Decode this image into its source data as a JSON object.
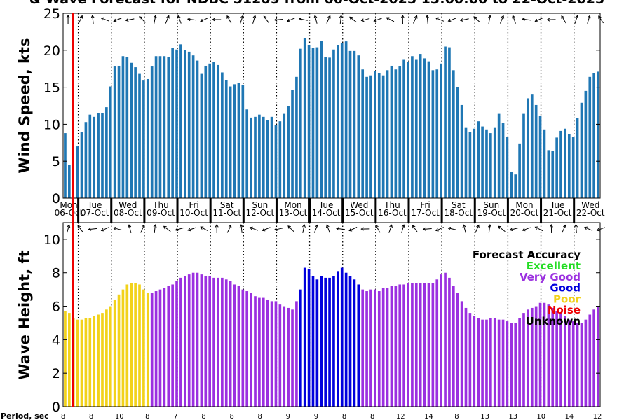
{
  "title": "& Wave Forecast for NDBC 51209 from 06-Oct-2025 13:00:00 to 22-Oct-2025",
  "colors": {
    "wind_bar": "#1f77b4",
    "excellent": "#22dd22",
    "very_good": "#9b30e0",
    "good": "#0000dd",
    "poor": "#f2d21a",
    "noise": "#ee0000",
    "unknown": "#000000",
    "now_line": "#ee0000"
  },
  "days": [
    {
      "dow": "Mon",
      "date": "06-Oct"
    },
    {
      "dow": "Tue",
      "date": "07-Oct"
    },
    {
      "dow": "Wed",
      "date": "08-Oct"
    },
    {
      "dow": "Thu",
      "date": "09-Oct"
    },
    {
      "dow": "Fri",
      "date": "10-Oct"
    },
    {
      "dow": "Sat",
      "date": "11-Oct"
    },
    {
      "dow": "Sun",
      "date": "12-Oct"
    },
    {
      "dow": "Mon",
      "date": "13-Oct"
    },
    {
      "dow": "Tue",
      "date": "14-Oct"
    },
    {
      "dow": "Wed",
      "date": "15-Oct"
    },
    {
      "dow": "Thu",
      "date": "16-Oct"
    },
    {
      "dow": "Fri",
      "date": "17-Oct"
    },
    {
      "dow": "Sat",
      "date": "18-Oct"
    },
    {
      "dow": "Sun",
      "date": "19-Oct"
    },
    {
      "dow": "Mon",
      "date": "20-Oct"
    },
    {
      "dow": "Tue",
      "date": "21-Oct"
    },
    {
      "dow": "Wed",
      "date": "22-Oct"
    }
  ],
  "legend": {
    "title": "Forecast Accuracy",
    "items": [
      {
        "label": "Excellent",
        "color_key": "excellent"
      },
      {
        "label": "Very Good",
        "color_key": "very_good"
      },
      {
        "label": "Good",
        "color_key": "good"
      },
      {
        "label": "Poor",
        "color_key": "poor"
      },
      {
        "label": "Noise",
        "color_key": "noise"
      },
      {
        "label": "Unknown",
        "color_key": "unknown"
      }
    ]
  },
  "period_label": "Period, sec",
  "period_values": [
    "8",
    "8",
    "10",
    "8",
    "7",
    "8",
    "8",
    "8",
    "9",
    "9",
    "8",
    "8",
    "12",
    "14",
    "8",
    "13",
    "13",
    "10",
    "14",
    "12"
  ],
  "chart_data": [
    {
      "type": "bar",
      "ylabel": "Wind Speed, kts",
      "ylim": [
        0,
        25
      ],
      "yticks": [
        0,
        5,
        10,
        15,
        20,
        25
      ],
      "grid": "dotted vertical lines at day boundaries",
      "start_hour": 13,
      "step_hours": 3,
      "values": [
        8.8,
        4.5,
        0,
        7.0,
        8.9,
        10.3,
        11.3,
        11.0,
        11.5,
        11.5,
        12.3,
        15.1,
        17.8,
        17.9,
        19.2,
        19.1,
        18.3,
        17.7,
        16.8,
        15.9,
        16.1,
        17.8,
        19.2,
        19.2,
        19.2,
        19.1,
        20.3,
        20.1,
        20.8,
        20.0,
        19.8,
        19.3,
        18.6,
        16.8,
        17.9,
        18.2,
        18.4,
        18.0,
        17.0,
        16.0,
        15.1,
        15.4,
        15.6,
        15.3,
        12.0,
        10.9,
        11.0,
        11.3,
        11.0,
        10.6,
        11.0,
        9.9,
        10.4,
        11.4,
        12.5,
        14.6,
        16.4,
        20.2,
        21.6,
        20.7,
        20.3,
        20.4,
        21.3,
        19.1,
        19.0,
        20.1,
        20.7,
        21.0,
        21.2,
        19.9,
        19.9,
        19.3,
        17.4,
        16.4,
        16.6,
        17.2,
        16.9,
        16.6,
        17.3,
        17.9,
        17.4,
        17.8,
        18.7,
        18.4,
        19.2,
        18.7,
        19.5,
        18.9,
        18.5,
        17.3,
        17.4,
        18.2,
        20.5,
        20.4,
        17.3,
        15.0,
        12.6,
        9.5,
        8.9,
        9.4,
        10.4,
        9.7,
        9.3,
        8.8,
        9.5,
        11.4,
        10.2,
        8.3,
        3.6,
        3.2,
        7.4,
        11.4,
        13.5,
        14.0,
        12.6,
        11.1,
        9.3,
        6.5,
        6.4,
        8.2,
        9.1,
        9.4,
        8.7,
        8.3,
        10.8,
        12.9,
        14.5,
        16.4,
        16.9,
        17.1
      ]
    },
    {
      "type": "bar",
      "ylabel": "Wave Height, ft",
      "ylim": [
        0,
        11
      ],
      "yticks": [
        0,
        2,
        4,
        6,
        8,
        10
      ],
      "grid": "dotted vertical lines at day boundaries",
      "start_hour": 13,
      "step_hours": 3,
      "values": [
        5.7,
        5.6,
        5.3,
        5.2,
        5.2,
        5.3,
        5.3,
        5.4,
        5.5,
        5.6,
        5.8,
        6.0,
        6.4,
        6.7,
        7.0,
        7.3,
        7.4,
        7.4,
        7.3,
        7.0,
        6.8,
        6.8,
        6.9,
        7.0,
        7.1,
        7.2,
        7.3,
        7.5,
        7.7,
        7.8,
        7.9,
        8.0,
        8.0,
        7.9,
        7.8,
        7.8,
        7.7,
        7.7,
        7.7,
        7.6,
        7.5,
        7.3,
        7.2,
        7.0,
        6.9,
        6.8,
        6.6,
        6.5,
        6.5,
        6.4,
        6.3,
        6.3,
        6.1,
        6.0,
        5.9,
        5.8,
        6.3,
        7.0,
        8.3,
        8.2,
        7.8,
        7.6,
        7.8,
        7.7,
        7.7,
        7.8,
        8.1,
        8.3,
        8.0,
        7.8,
        7.6,
        7.3,
        7.0,
        6.9,
        7.0,
        7.0,
        6.9,
        7.1,
        7.1,
        7.2,
        7.2,
        7.3,
        7.3,
        7.4,
        7.4,
        7.4,
        7.4,
        7.4,
        7.4,
        7.4,
        7.6,
        7.9,
        8.0,
        7.7,
        7.2,
        6.8,
        6.3,
        5.9,
        5.6,
        5.4,
        5.3,
        5.2,
        5.2,
        5.3,
        5.3,
        5.2,
        5.2,
        5.1,
        5.0,
        5.0,
        5.3,
        5.6,
        5.8,
        5.9,
        6.0,
        6.2,
        6.2,
        6.1,
        5.9,
        5.7,
        5.6,
        5.4,
        5.2,
        5.1,
        5.0,
        5.0,
        5.2,
        5.5,
        5.8,
        6.0
      ],
      "accuracy": [
        "poor",
        "poor",
        "poor",
        "poor",
        "poor",
        "poor",
        "poor",
        "poor",
        "poor",
        "poor",
        "poor",
        "poor",
        "poor",
        "poor",
        "poor",
        "poor",
        "poor",
        "poor",
        "poor",
        "poor",
        "poor",
        "very_good",
        "very_good",
        "very_good",
        "very_good",
        "very_good",
        "very_good",
        "very_good",
        "very_good",
        "very_good",
        "very_good",
        "very_good",
        "very_good",
        "very_good",
        "very_good",
        "very_good",
        "very_good",
        "very_good",
        "very_good",
        "very_good",
        "very_good",
        "very_good",
        "very_good",
        "very_good",
        "very_good",
        "very_good",
        "very_good",
        "very_good",
        "very_good",
        "very_good",
        "very_good",
        "very_good",
        "very_good",
        "very_good",
        "very_good",
        "very_good",
        "very_good",
        "good",
        "good",
        "good",
        "good",
        "good",
        "good",
        "good",
        "good",
        "good",
        "good",
        "good",
        "good",
        "good",
        "good",
        "good",
        "very_good",
        "very_good",
        "very_good",
        "very_good",
        "very_good",
        "very_good",
        "very_good",
        "very_good",
        "very_good",
        "very_good",
        "very_good",
        "very_good",
        "very_good",
        "very_good",
        "very_good",
        "very_good",
        "very_good",
        "very_good",
        "very_good",
        "very_good",
        "very_good",
        "very_good",
        "very_good",
        "very_good",
        "very_good",
        "very_good",
        "very_good",
        "very_good",
        "very_good",
        "very_good",
        "very_good",
        "very_good",
        "very_good",
        "very_good",
        "very_good",
        "very_good",
        "very_good",
        "very_good",
        "very_good",
        "very_good",
        "very_good",
        "very_good",
        "very_good",
        "very_good",
        "very_good",
        "very_good",
        "very_good",
        "very_good",
        "very_good",
        "very_good",
        "very_good",
        "very_good",
        "very_good",
        "very_good",
        "very_good",
        "very_good",
        "very_good",
        "very_good"
      ]
    }
  ]
}
